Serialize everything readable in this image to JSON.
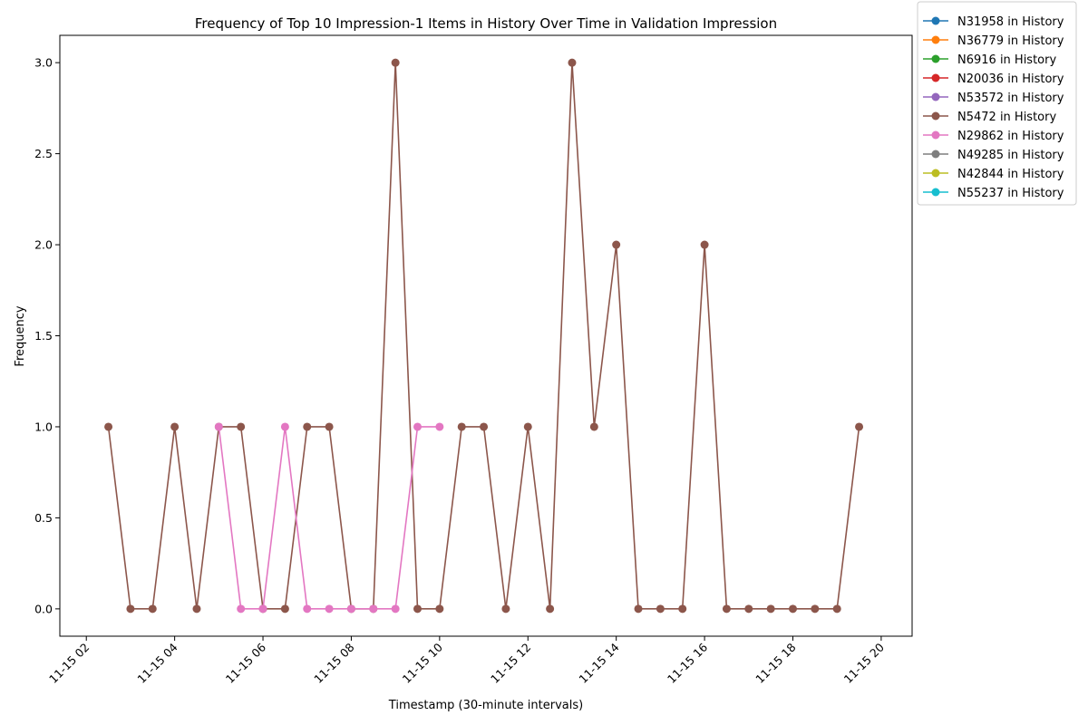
{
  "chart_data": {
    "type": "line",
    "title": "Frequency of Top 10 Impression-1 Items in History Over Time in Validation Impression",
    "xlabel": "Timestamp (30-minute intervals)",
    "ylabel": "Frequency",
    "x_tick_labels": [
      "11-15 02",
      "11-15 04",
      "11-15 06",
      "11-15 08",
      "11-15 10",
      "11-15 12",
      "11-15 14",
      "11-15 16",
      "11-15 18",
      "11-15 20"
    ],
    "x_ticks_hours": [
      2,
      4,
      6,
      8,
      10,
      12,
      14,
      16,
      18,
      20
    ],
    "xlim_hours": [
      1.4,
      20.7
    ],
    "y_ticks": [
      0.0,
      0.5,
      1.0,
      1.5,
      2.0,
      2.5,
      3.0
    ],
    "y_tick_labels": [
      "0.0",
      "0.5",
      "1.0",
      "1.5",
      "2.0",
      "2.5",
      "3.0"
    ],
    "ylim": [
      -0.15,
      3.15
    ],
    "grid": false,
    "legend_position": "outside-top-right",
    "series": [
      {
        "name": "N31958 in History",
        "color": "#1f77b4",
        "x": [],
        "values": []
      },
      {
        "name": "N36779 in History",
        "color": "#ff7f0e",
        "x": [],
        "values": []
      },
      {
        "name": "N6916 in History",
        "color": "#2ca02c",
        "x": [],
        "values": []
      },
      {
        "name": "N20036 in History",
        "color": "#d62728",
        "x": [],
        "values": []
      },
      {
        "name": "N53572 in History",
        "color": "#9467bd",
        "x": [],
        "values": []
      },
      {
        "name": "N5472 in History",
        "color": "#8c564b",
        "x": [
          2.5,
          3.0,
          3.5,
          4.0,
          4.5,
          5.0,
          5.5,
          6.0,
          6.5,
          7.0,
          7.5,
          8.0,
          8.5,
          9.0,
          9.5,
          10.0,
          10.5,
          11.0,
          11.5,
          12.0,
          12.5,
          13.0,
          13.5,
          14.0,
          14.5,
          15.0,
          15.5,
          16.0,
          16.5,
          17.0,
          17.5,
          18.0,
          18.5,
          19.0,
          19.5
        ],
        "values": [
          1,
          0,
          0,
          1,
          0,
          1,
          1,
          0,
          0,
          1,
          1,
          0,
          0,
          3,
          0,
          0,
          1,
          1,
          0,
          1,
          0,
          3,
          1,
          2,
          0,
          0,
          0,
          2,
          0,
          0,
          0,
          0,
          0,
          0,
          1
        ]
      },
      {
        "name": "N29862 in History",
        "color": "#e377c2",
        "x": [
          5.0,
          5.5,
          6.0,
          6.5,
          7.0,
          7.5,
          8.0,
          8.5,
          9.0,
          9.5,
          10.0
        ],
        "values": [
          1,
          0,
          0,
          1,
          0,
          0,
          0,
          0,
          0,
          1,
          1
        ]
      },
      {
        "name": "N49285 in History",
        "color": "#7f7f7f",
        "x": [],
        "values": []
      },
      {
        "name": "N42844 in History",
        "color": "#bcbd22",
        "x": [],
        "values": []
      },
      {
        "name": "N55237 in History",
        "color": "#17becf",
        "x": [],
        "values": []
      }
    ]
  }
}
